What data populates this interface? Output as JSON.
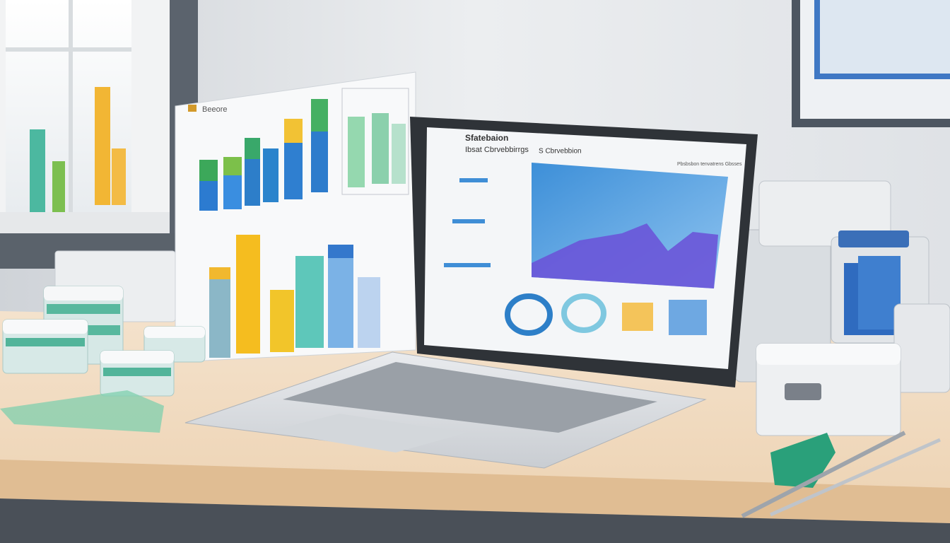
{
  "scene": {
    "board_label": "Beeore",
    "laptop_screen": {
      "title": "Sfatebaion",
      "subtitle": "Ibsat Cbrvebbirrgs",
      "panel_title": "S Cbrvebbion",
      "header_note": "Pbsbsbon tenvatrens Gbsses"
    }
  }
}
